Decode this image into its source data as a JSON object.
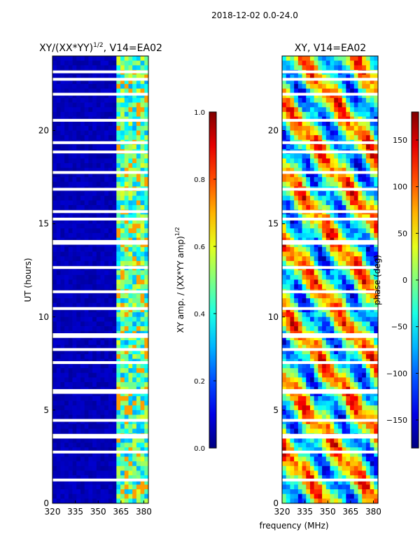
{
  "chart_data": [
    {
      "type": "heatmap",
      "title": "XY/(XX*YY)^1/2, V14=EA02",
      "title_main": "XY/(XX*YY)",
      "title_exp": "1/2",
      "title_suffix": ", V14=EA02",
      "xlabel": "",
      "ylabel": "UT (hours)",
      "xlim": [
        320,
        383
      ],
      "ylim": [
        0,
        24
      ],
      "xticks": [
        320,
        335,
        350,
        365,
        380
      ],
      "yticks": [
        0,
        5,
        10,
        15,
        20
      ],
      "colormap": "jet",
      "colorbar": {
        "label": "XY amp. / (XX*YY amp)^1/2",
        "label_main": "XY amp. / (XX*YY amp)",
        "label_exp": "1/2",
        "range": [
          0.0,
          1.0
        ],
        "ticks": [
          "0.0",
          "0.2",
          "0.4",
          "0.6",
          "0.8",
          "1.0"
        ]
      }
    },
    {
      "type": "heatmap",
      "title": "XY, V14=EA02",
      "xlabel": "frequency (MHz)",
      "ylabel": "",
      "xlim": [
        320,
        383
      ],
      "ylim": [
        0,
        24
      ],
      "xticks": [
        320,
        335,
        350,
        365,
        380
      ],
      "yticks": [
        0,
        5,
        10,
        15,
        20
      ],
      "colormap": "jet",
      "colorbar": {
        "label": "phase (deg)",
        "range": [
          -180,
          180
        ],
        "ticks": [
          "−150",
          "−100",
          "−50",
          "0",
          "50",
          "100",
          "150"
        ]
      }
    }
  ],
  "suptitle": "2018-12-02 0.0-24.0",
  "flagged_hours": [
    23.15,
    22.75,
    21.95,
    20.55,
    19.35,
    18.85,
    17.75,
    16.85,
    15.65,
    15.25,
    14.05,
    13.95,
    12.65,
    11.35,
    10.45,
    9.05,
    8.95,
    8.25,
    7.55,
    6.05,
    5.95,
    4.45,
    3.65,
    3.55,
    2.75,
    1.25
  ]
}
